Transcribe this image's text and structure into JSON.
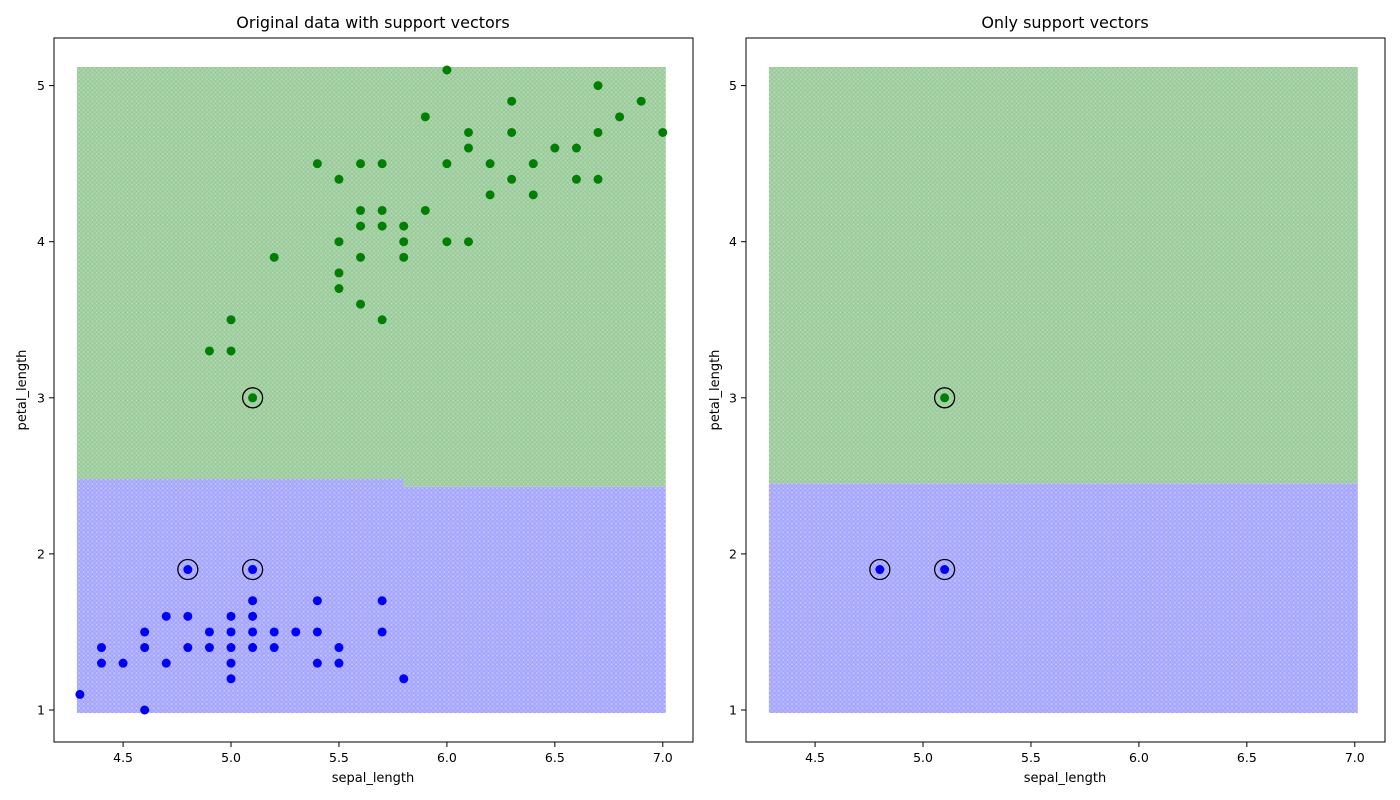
{
  "chart_data": [
    {
      "type": "scatter",
      "title": "Original data with support vectors",
      "xlabel": "sepal_length",
      "ylabel": "petal_length",
      "xlim": [
        4.18,
        7.14
      ],
      "ylim": [
        0.795,
        5.305
      ],
      "xticks": [
        "4.5",
        "5.0",
        "5.5",
        "6.0",
        "6.5",
        "7.0"
      ],
      "yticks": [
        "1",
        "2",
        "3",
        "4",
        "5"
      ],
      "grid": false,
      "decision_region": {
        "x_range": [
          4.3,
          7.0
        ],
        "y_range": [
          1.0,
          5.1
        ],
        "classes": [
          {
            "name": "class-0",
            "color": "#0000ff",
            "y_from": 1.0,
            "y_to": 2.45
          },
          {
            "name": "class-1",
            "color": "#008000",
            "y_from": 2.45,
            "y_to": 5.1
          }
        ],
        "boundary": [
          [
            4.3,
            2.48
          ],
          [
            5.8,
            2.48
          ],
          [
            5.8,
            2.43
          ],
          [
            7.0,
            2.43
          ]
        ]
      },
      "series": [
        {
          "color": "#0000ff",
          "points": [
            [
              4.3,
              1.1
            ],
            [
              4.4,
              1.4
            ],
            [
              4.4,
              1.3
            ],
            [
              4.5,
              1.3
            ],
            [
              4.6,
              1.5
            ],
            [
              4.6,
              1.4
            ],
            [
              4.6,
              1.0
            ],
            [
              4.7,
              1.6
            ],
            [
              4.7,
              1.3
            ],
            [
              4.8,
              1.9
            ],
            [
              4.8,
              1.6
            ],
            [
              4.8,
              1.4
            ],
            [
              4.9,
              1.5
            ],
            [
              4.9,
              1.4
            ],
            [
              5.0,
              1.6
            ],
            [
              5.0,
              1.5
            ],
            [
              5.0,
              1.4
            ],
            [
              5.0,
              1.3
            ],
            [
              5.0,
              1.2
            ],
            [
              5.1,
              1.9
            ],
            [
              5.1,
              1.7
            ],
            [
              5.1,
              1.6
            ],
            [
              5.1,
              1.5
            ],
            [
              5.1,
              1.4
            ],
            [
              5.2,
              1.5
            ],
            [
              5.2,
              1.4
            ],
            [
              5.3,
              1.5
            ],
            [
              5.4,
              1.7
            ],
            [
              5.4,
              1.5
            ],
            [
              5.4,
              1.3
            ],
            [
              5.5,
              1.4
            ],
            [
              5.5,
              1.3
            ],
            [
              5.7,
              1.7
            ],
            [
              5.7,
              1.5
            ],
            [
              5.8,
              1.2
            ]
          ]
        },
        {
          "color": "#008000",
          "points": [
            [
              4.9,
              3.3
            ],
            [
              5.0,
              3.5
            ],
            [
              5.0,
              3.3
            ],
            [
              5.1,
              3.0
            ],
            [
              5.2,
              3.9
            ],
            [
              5.4,
              4.5
            ],
            [
              5.5,
              4.4
            ],
            [
              5.5,
              4.0
            ],
            [
              5.5,
              3.8
            ],
            [
              5.5,
              3.7
            ],
            [
              5.6,
              4.5
            ],
            [
              5.6,
              4.2
            ],
            [
              5.6,
              4.1
            ],
            [
              5.6,
              3.9
            ],
            [
              5.6,
              3.6
            ],
            [
              5.7,
              4.5
            ],
            [
              5.7,
              4.2
            ],
            [
              5.7,
              4.1
            ],
            [
              5.7,
              3.5
            ],
            [
              5.8,
              4.1
            ],
            [
              5.8,
              4.0
            ],
            [
              5.8,
              3.9
            ],
            [
              5.9,
              4.8
            ],
            [
              5.9,
              4.2
            ],
            [
              6.0,
              5.1
            ],
            [
              6.0,
              4.5
            ],
            [
              6.0,
              4.0
            ],
            [
              6.1,
              4.7
            ],
            [
              6.1,
              4.6
            ],
            [
              6.1,
              4.0
            ],
            [
              6.2,
              4.5
            ],
            [
              6.2,
              4.3
            ],
            [
              6.3,
              4.9
            ],
            [
              6.3,
              4.7
            ],
            [
              6.3,
              4.4
            ],
            [
              6.4,
              4.5
            ],
            [
              6.4,
              4.3
            ],
            [
              6.5,
              4.6
            ],
            [
              6.6,
              4.6
            ],
            [
              6.6,
              4.4
            ],
            [
              6.7,
              5.0
            ],
            [
              6.7,
              4.7
            ],
            [
              6.7,
              4.4
            ],
            [
              6.8,
              4.8
            ],
            [
              6.9,
              4.9
            ],
            [
              7.0,
              4.7
            ]
          ]
        }
      ],
      "support_vectors": [
        [
          5.1,
          3.0
        ],
        [
          4.8,
          1.9
        ],
        [
          5.1,
          1.9
        ]
      ]
    },
    {
      "type": "scatter",
      "title": "Only support vectors",
      "xlabel": "sepal_length",
      "ylabel": "petal_length",
      "xlim": [
        4.18,
        7.14
      ],
      "ylim": [
        0.795,
        5.305
      ],
      "xticks": [
        "4.5",
        "5.0",
        "5.5",
        "6.0",
        "6.5",
        "7.0"
      ],
      "yticks": [
        "1",
        "2",
        "3",
        "4",
        "5"
      ],
      "grid": false,
      "decision_region": {
        "x_range": [
          4.3,
          7.0
        ],
        "y_range": [
          1.0,
          5.1
        ],
        "classes": [
          {
            "name": "class-0",
            "color": "#0000ff",
            "y_from": 1.0,
            "y_to": 2.45
          },
          {
            "name": "class-1",
            "color": "#008000",
            "y_from": 2.45,
            "y_to": 5.1
          }
        ],
        "boundary": [
          [
            4.3,
            2.45
          ],
          [
            7.0,
            2.45
          ]
        ]
      },
      "series": [
        {
          "color": "#0000ff",
          "points": [
            [
              4.8,
              1.9
            ],
            [
              5.1,
              1.9
            ]
          ]
        },
        {
          "color": "#008000",
          "points": [
            [
              5.1,
              3.0
            ]
          ]
        }
      ],
      "support_vectors": [
        [
          5.1,
          3.0
        ],
        [
          4.8,
          1.9
        ],
        [
          5.1,
          1.9
        ]
      ]
    }
  ]
}
